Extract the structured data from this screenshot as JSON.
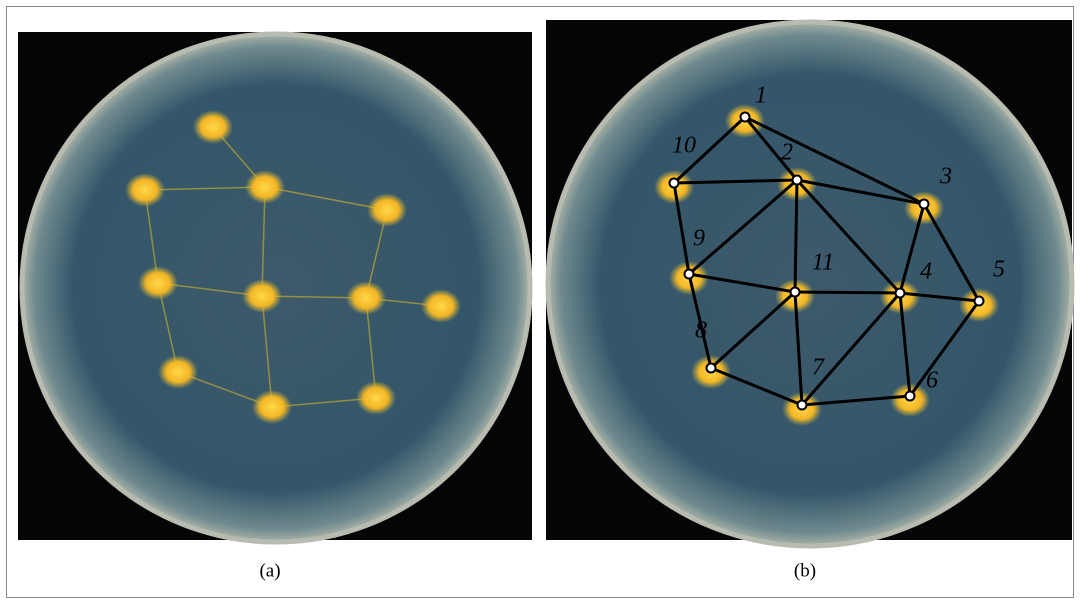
{
  "panels": [
    {
      "caption": "(a)"
    },
    {
      "caption": "(b)",
      "nodes": [
        {
          "label": "1"
        },
        {
          "label": "2"
        },
        {
          "label": "3"
        },
        {
          "label": "4"
        },
        {
          "label": "5"
        },
        {
          "label": "6"
        },
        {
          "label": "7"
        },
        {
          "label": "8"
        },
        {
          "label": "9"
        },
        {
          "label": "10"
        },
        {
          "label": "11"
        }
      ]
    }
  ]
}
